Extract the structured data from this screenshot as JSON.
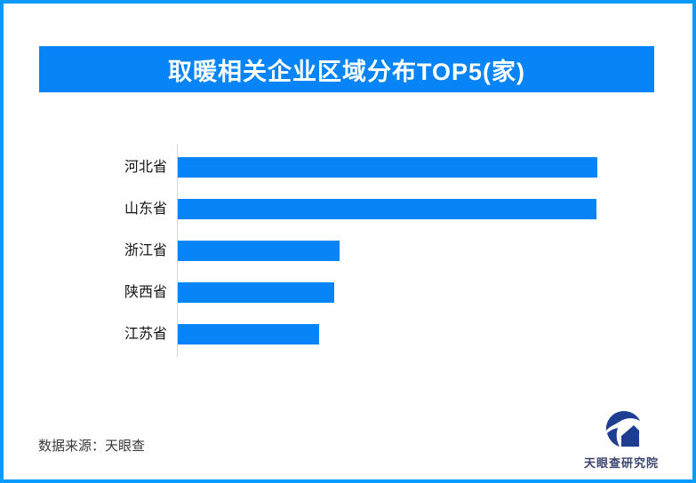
{
  "chart_data": {
    "type": "bar",
    "orientation": "horizontal",
    "title": "取暖相关企业区域分布TOP5(家)",
    "categories": [
      "河北省",
      "山东省",
      "浙江省",
      "陕西省",
      "江苏省"
    ],
    "values": [
      100,
      99.8,
      38.6,
      37.3,
      33.7
    ],
    "values_unit": "relative percent of longest bar (no numeric labels shown in image)",
    "value_labels_shown": false,
    "xlabel": "",
    "ylabel": "",
    "grid": false,
    "legend": "none",
    "bar_color": "#0684f8",
    "axis_line_color": "#d8d8d8"
  },
  "footer": {
    "source": "数据来源：天眼查",
    "brand": "天眼查研究院"
  },
  "icons": {
    "logo": "tianyancha-eye-logo"
  },
  "colors": {
    "frame_border_blue": "#0a9afc",
    "banner_blue": "#0684f8",
    "bar_blue": "#0684f8",
    "logo_navy": "#1e3e92",
    "brand_text_navy": "#3a4470",
    "label_text": "#141414",
    "source_text": "#3a3a3a"
  }
}
